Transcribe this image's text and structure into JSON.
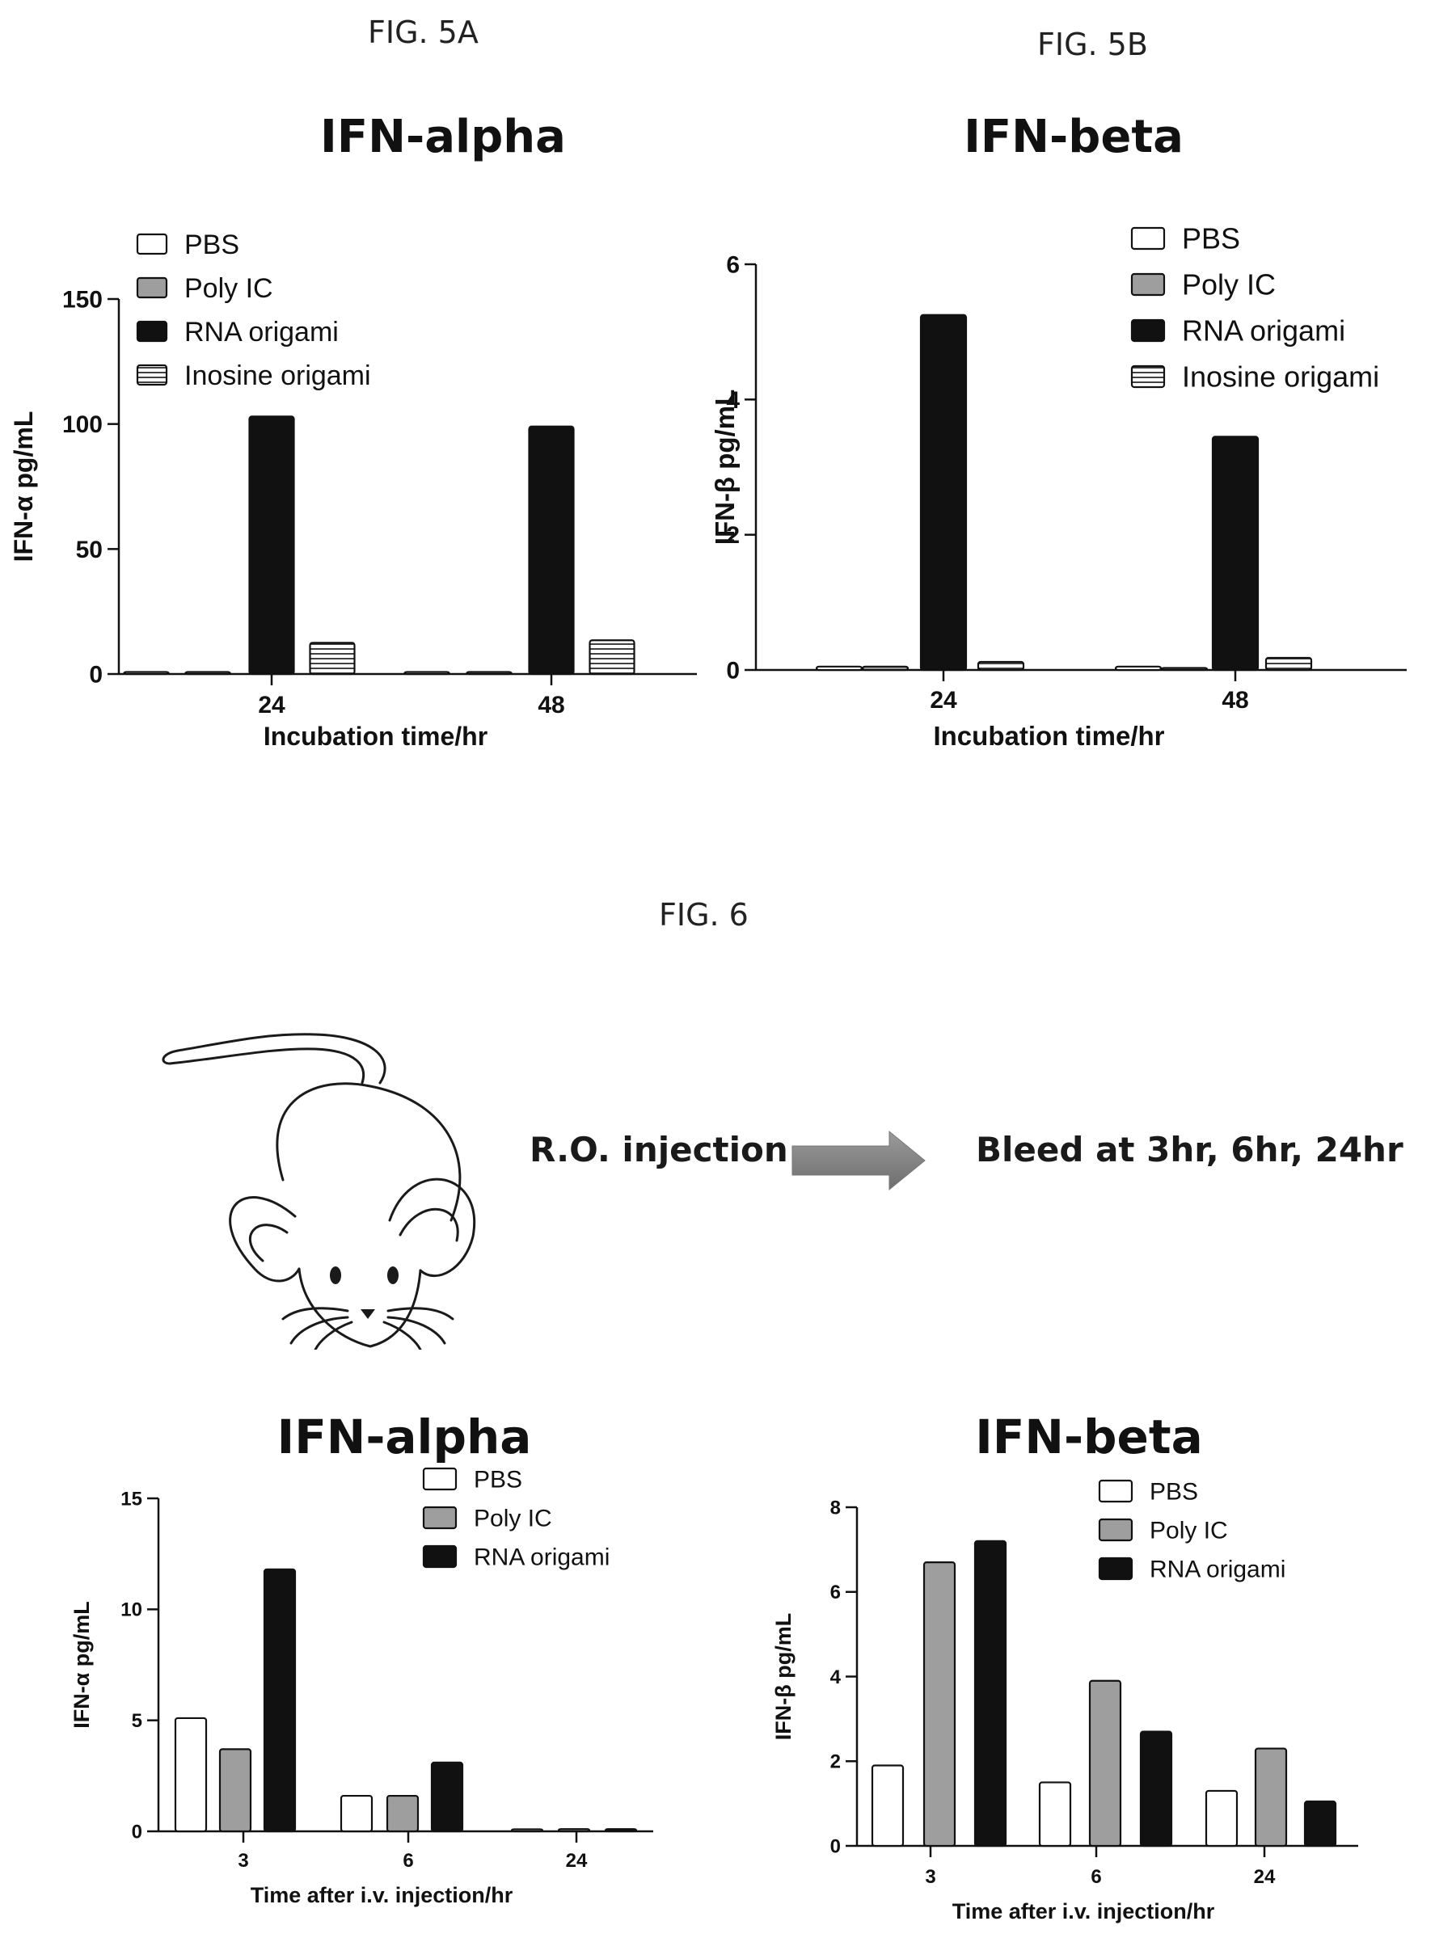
{
  "figure_labels": {
    "fig5a": "FIG. 5A",
    "fig5b": "FIG. 5B",
    "fig6": "FIG. 6"
  },
  "flow": {
    "step1": "R.O. injection",
    "step2": "Bleed at 3hr, 6hr, 24hr",
    "mouse_icon": "mouse-illustration",
    "arrow_icon": "right-arrow"
  },
  "colors": {
    "PBS": "#ffffff",
    "Poly IC": "#9e9e9e",
    "RNA origami": "#111111",
    "Inosine origami": "#ffffff"
  },
  "chart_data": [
    {
      "id": "fig5a",
      "type": "bar",
      "title": "IFN-alpha",
      "xlabel": "Incubation time/hr",
      "ylabel": "IFN-α pg/mL",
      "categories": [
        "24",
        "48"
      ],
      "ylim": [
        0,
        150
      ],
      "yticks": [
        0,
        50,
        100,
        150
      ],
      "legend_position": "top-left",
      "series": [
        {
          "name": "PBS",
          "values": [
            0,
            0
          ]
        },
        {
          "name": "Poly IC",
          "values": [
            0,
            0.5
          ]
        },
        {
          "name": "RNA origami",
          "values": [
            103,
            99
          ]
        },
        {
          "name": "Inosine origami",
          "values": [
            12.5,
            13.5
          ]
        }
      ]
    },
    {
      "id": "fig5b",
      "type": "bar",
      "title": "IFN-beta",
      "xlabel": "Incubation time/hr",
      "ylabel": "IFN-β pg/mL",
      "categories": [
        "24",
        "48"
      ],
      "ylim": [
        0,
        6
      ],
      "yticks": [
        0,
        2,
        4,
        6
      ],
      "legend_position": "top-right",
      "series": [
        {
          "name": "PBS",
          "values": [
            0.05,
            0.05
          ]
        },
        {
          "name": "Poly IC",
          "values": [
            0.05,
            0.03
          ]
        },
        {
          "name": "RNA origami",
          "values": [
            5.25,
            3.45
          ]
        },
        {
          "name": "Inosine origami",
          "values": [
            0.12,
            0.18
          ]
        }
      ]
    },
    {
      "id": "fig6a",
      "type": "bar",
      "title": "IFN-alpha",
      "xlabel": "Time after i.v. injection/hr",
      "ylabel": "IFN-α pg/mL",
      "categories": [
        "3",
        "6",
        "24"
      ],
      "ylim": [
        0,
        15
      ],
      "yticks": [
        0,
        5,
        10,
        15
      ],
      "legend_position": "top-right",
      "series": [
        {
          "name": "PBS",
          "values": [
            5.1,
            1.6,
            0
          ]
        },
        {
          "name": "Poly IC",
          "values": [
            3.7,
            1.6,
            0.1
          ]
        },
        {
          "name": "RNA origami",
          "values": [
            11.8,
            3.1,
            0.1
          ]
        }
      ]
    },
    {
      "id": "fig6b",
      "type": "bar",
      "title": "IFN-beta",
      "xlabel": "Time after i.v. injection/hr",
      "ylabel": "IFN-β pg/mL",
      "categories": [
        "3",
        "6",
        "24"
      ],
      "ylim": [
        0,
        8
      ],
      "yticks": [
        0,
        2,
        4,
        6,
        8
      ],
      "legend_position": "top-right",
      "series": [
        {
          "name": "PBS",
          "values": [
            1.9,
            1.5,
            1.3
          ]
        },
        {
          "name": "Poly IC",
          "values": [
            6.7,
            3.9,
            2.3
          ]
        },
        {
          "name": "RNA origami",
          "values": [
            7.2,
            2.7,
            1.05
          ]
        }
      ]
    }
  ]
}
